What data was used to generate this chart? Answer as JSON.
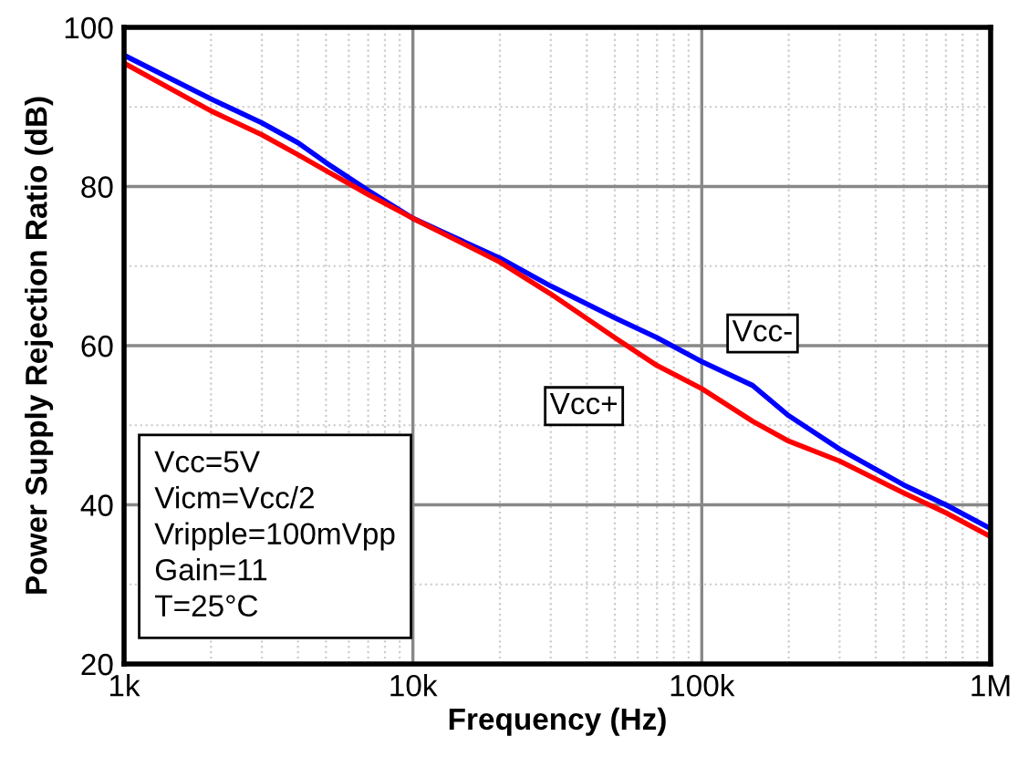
{
  "chart_data": {
    "type": "line",
    "xlabel": "Frequency (Hz)",
    "ylabel": "Power Supply Rejection Ratio (dB)",
    "log": "x",
    "grid": true,
    "legend": false,
    "xlim": [
      1000,
      1000000
    ],
    "xticks": [
      {
        "value": 1000,
        "label": "1k"
      },
      {
        "value": 10000,
        "label": "10k"
      },
      {
        "value": 100000,
        "label": "100k"
      },
      {
        "value": 1000000,
        "label": "1M"
      }
    ],
    "ylim": [
      20,
      100
    ],
    "yticks": [
      20,
      40,
      60,
      80,
      100
    ],
    "series": [
      {
        "name": "Vcc-",
        "color": "#0000ff",
        "x": [
          1000,
          2000,
          3000,
          4000,
          5000,
          7000,
          10000,
          20000,
          30000,
          50000,
          70000,
          100000,
          150000,
          200000,
          300000,
          500000,
          700000,
          1000000
        ],
        "values": [
          96.5,
          91,
          88,
          85.5,
          83,
          79.5,
          76,
          71,
          67.5,
          63.5,
          61,
          58,
          55,
          51.2,
          47,
          42.5,
          40,
          37
        ]
      },
      {
        "name": "Vcc+",
        "color": "#ff0000",
        "x": [
          1000,
          2000,
          3000,
          4000,
          5000,
          7000,
          10000,
          20000,
          30000,
          50000,
          70000,
          100000,
          150000,
          200000,
          300000,
          500000,
          700000,
          1000000
        ],
        "values": [
          95.5,
          89.5,
          86.5,
          84,
          82,
          79,
          76,
          70.5,
          66.5,
          61,
          57.5,
          54.6,
          50.5,
          48,
          45.5,
          41.5,
          39,
          36
        ]
      }
    ],
    "annotations": [
      "Vcc=5V\nVicm=Vcc/2\nVripple=100mVpp\nGain=11\nT=25°C"
    ]
  }
}
